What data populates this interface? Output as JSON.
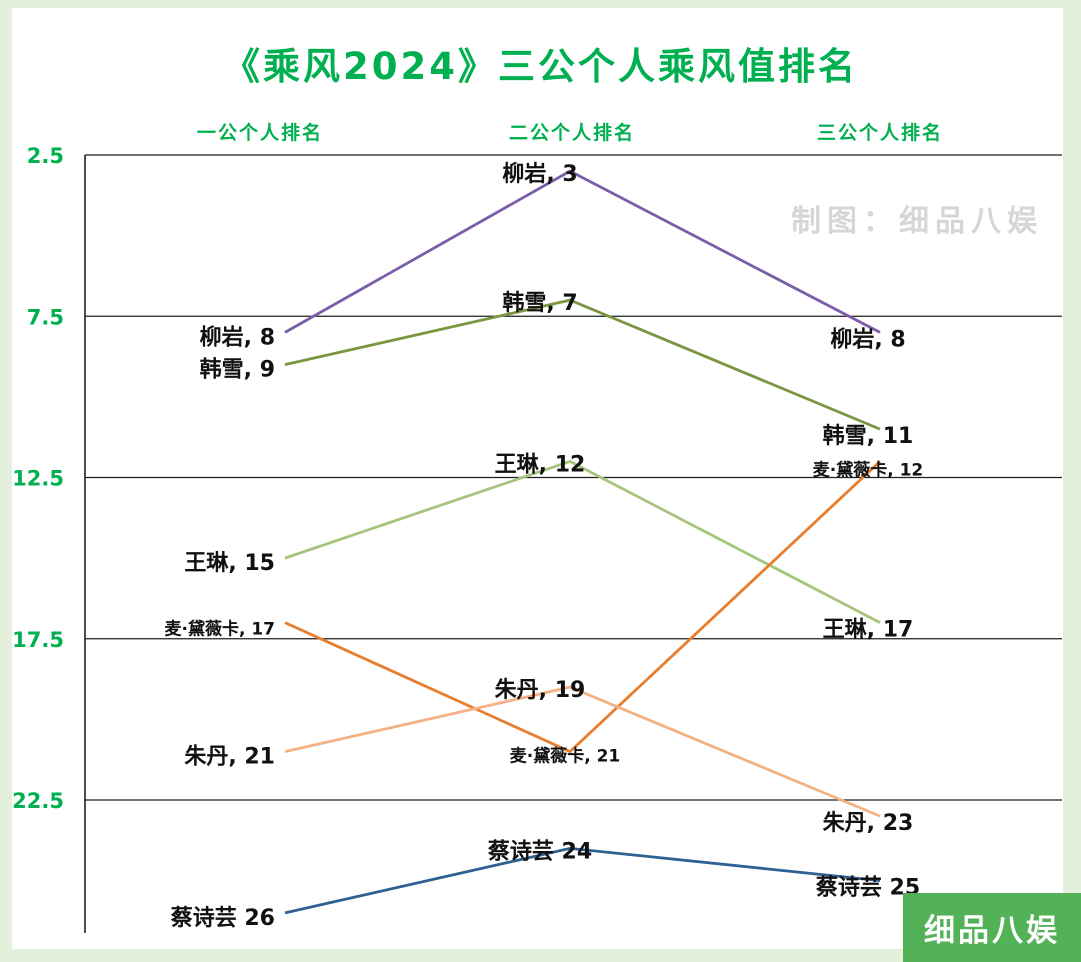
{
  "title": "《乘风2024》三公个人乘风值排名",
  "watermarks": {
    "top_right": "制图：细品八娱",
    "bottom_right": "细品八娱"
  },
  "colors": {
    "accent_green": "#00b050",
    "frame_green": "#e3f1dc",
    "watermark_gray": "#d6d6d6",
    "badge_green": "#53b257",
    "grid_line": "#1f1f1f",
    "data_label": "#111111"
  },
  "chart_data": {
    "type": "line",
    "title": "《乘风2024》三公个人乘风值排名",
    "categories": [
      "一公个人排名",
      "二公个人排名",
      "三公个人排名"
    ],
    "y_ticks": [
      "2.5",
      "7.5",
      "12.5",
      "17.5",
      "22.5"
    ],
    "y_axis": {
      "inverted": true,
      "range": [
        2.5,
        27.5
      ],
      "grid": true
    },
    "legend": "none",
    "series": [
      {
        "name": "柳岩",
        "color": "#7b5ea7",
        "values": [
          8,
          3,
          8
        ],
        "labels": [
          "柳岩, 8",
          "柳岩, 3",
          "柳岩, 8"
        ],
        "placements": [
          "left",
          "above",
          "under"
        ]
      },
      {
        "name": "韩雪",
        "color": "#7a9640",
        "values": [
          9,
          7,
          11
        ],
        "labels": [
          "韩雪, 9",
          "韩雪, 7",
          "韩雪, 11"
        ],
        "placements": [
          "left",
          "above",
          "under"
        ]
      },
      {
        "name": "王琳",
        "color": "#a6c57c",
        "values": [
          15,
          12,
          17
        ],
        "labels": [
          "王琳, 15",
          "王琳, 12",
          "王琳, 17"
        ],
        "placements": [
          "left",
          "above",
          "under"
        ]
      },
      {
        "name": "麦·黛薇卡",
        "color": "#e87d2e",
        "values": [
          17,
          21,
          12
        ],
        "labels": [
          "麦·黛薇卡, 17",
          "麦·黛薇卡, 21",
          "麦·黛薇卡, 12"
        ],
        "placements": [
          "left",
          "below",
          "under"
        ],
        "small_label": true
      },
      {
        "name": "朱丹",
        "color": "#f4b183",
        "values": [
          21,
          19,
          23
        ],
        "labels": [
          "朱丹, 21",
          "朱丹, 19",
          "朱丹, 23"
        ],
        "placements": [
          "left",
          "above",
          "under"
        ]
      },
      {
        "name": "蔡诗芸",
        "color": "#2e6093",
        "values": [
          26,
          24,
          25
        ],
        "labels": [
          "蔡诗芸 26",
          "蔡诗芸 24",
          "蔡诗芸 25"
        ],
        "placements": [
          "left",
          "above",
          "under"
        ]
      }
    ]
  }
}
